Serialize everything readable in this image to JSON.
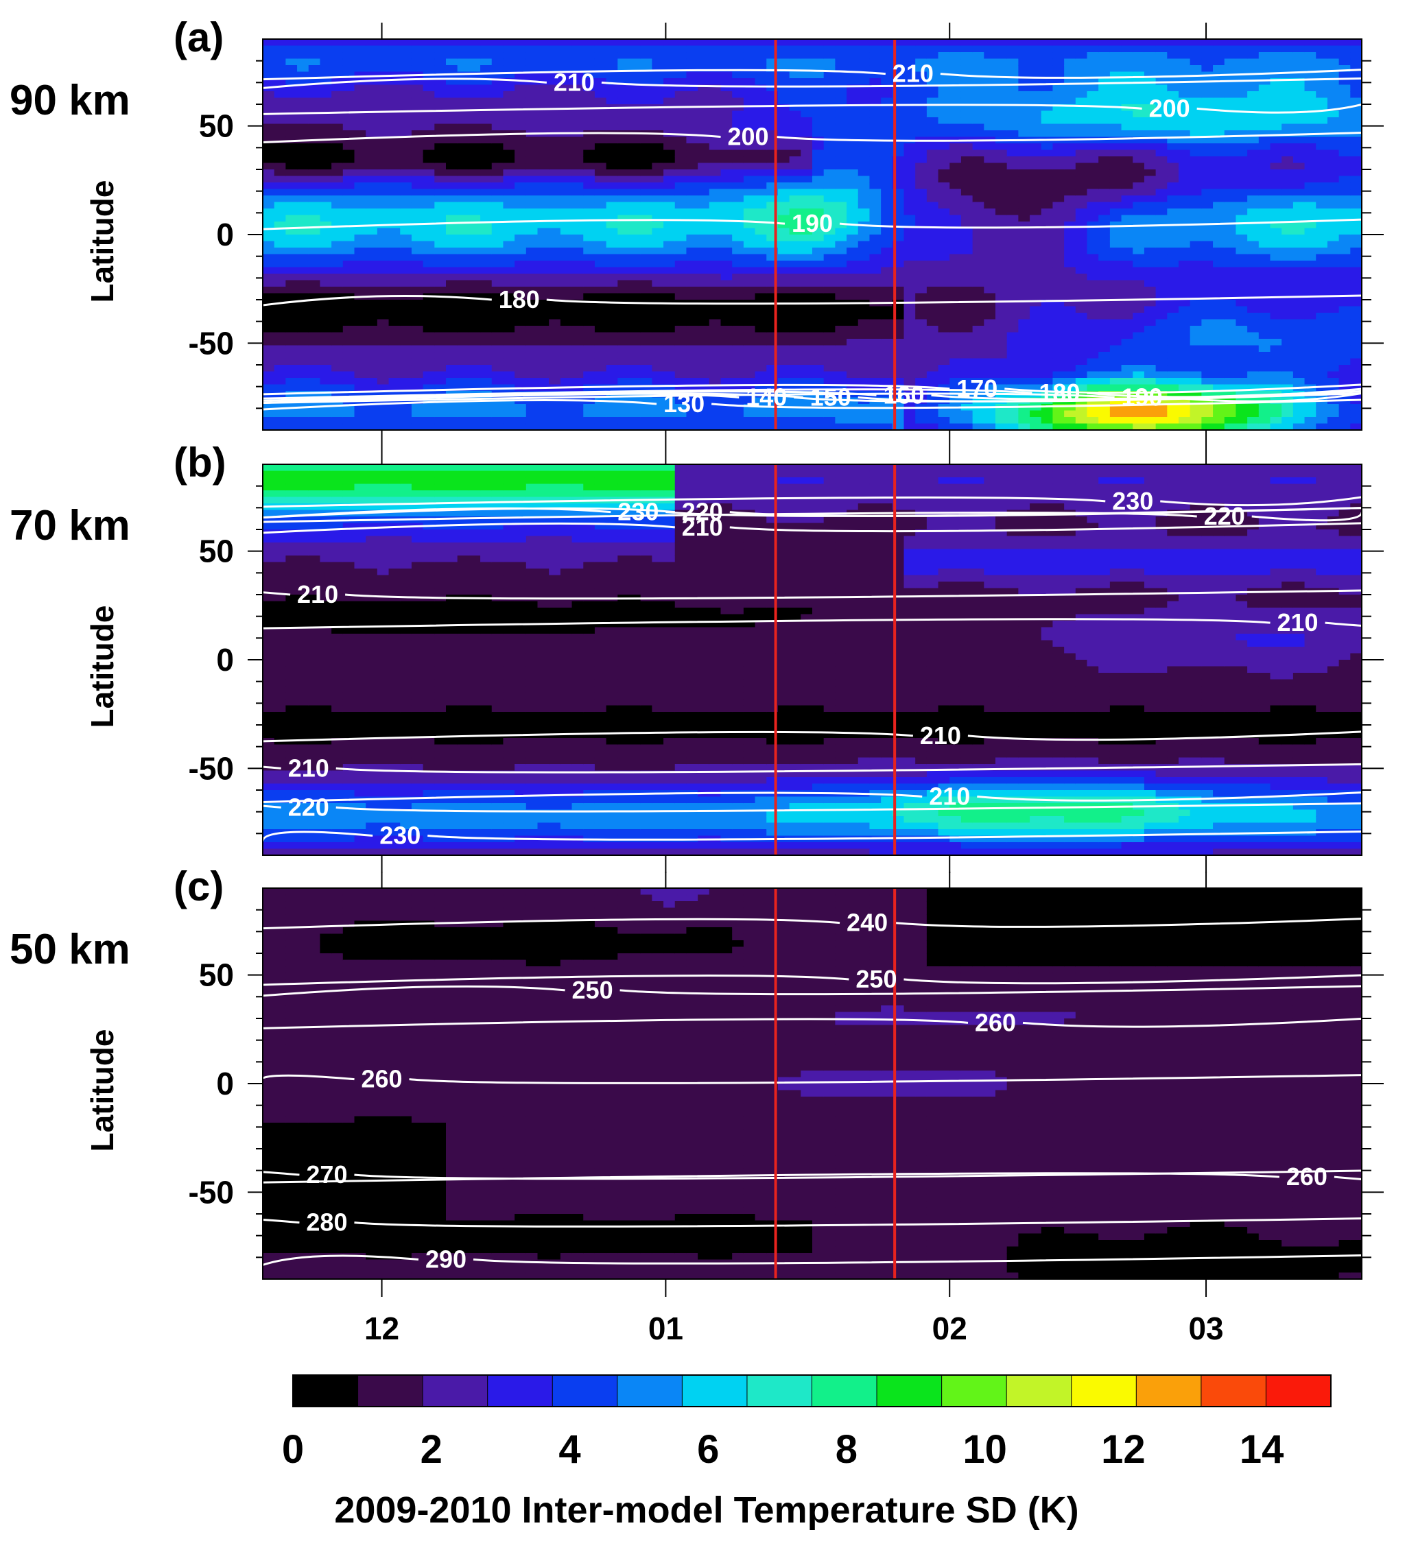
{
  "chart_data": {
    "type": "heatmap",
    "colorbar": {
      "label": "2009-2010 Inter-model Temperature SD (K)",
      "ticks": [
        "0",
        "2",
        "4",
        "6",
        "8",
        "10",
        "12",
        "14"
      ],
      "min": 0,
      "max": 15,
      "step": 1,
      "colors": [
        "#000000",
        "#3a0a4a",
        "#4a1aa8",
        "#2a1ae8",
        "#0a3ef0",
        "#0a86f6",
        "#00d2f2",
        "#1ee8c8",
        "#12f08a",
        "#0ae41c",
        "#62f418",
        "#c2f428",
        "#fafa00",
        "#faa00a",
        "#fa4a0a",
        "#fa1a0a"
      ]
    },
    "xaxis": {
      "tick_labels": [
        "12",
        "01",
        "02",
        "03"
      ],
      "tick_dates": [
        "2009-12-01",
        "2010-01-01",
        "2010-02-01",
        "2010-03-01"
      ],
      "range": [
        "2009-11-18",
        "2010-03-18"
      ]
    },
    "event_lines": {
      "color": "#e8231e",
      "dates": [
        "2010-01-13",
        "2010-01-26"
      ]
    },
    "panels": [
      {
        "tag": "(a)",
        "altitude": "90 km",
        "ylabel": "Latitude",
        "yticks": [
          "50",
          "0",
          "-50"
        ],
        "ylim": [
          -90,
          90
        ],
        "contour_labels": [
          {
            "text": "210",
            "date": "2009-12-22",
            "lat": 70
          },
          {
            "text": "210",
            "date": "2010-01-28",
            "lat": 74
          },
          {
            "text": "200",
            "date": "2010-01-10",
            "lat": 45
          },
          {
            "text": "200",
            "date": "2010-02-25",
            "lat": 58
          },
          {
            "text": "190",
            "date": "2010-01-17",
            "lat": 5
          },
          {
            "text": "180",
            "date": "2009-12-16",
            "lat": -30
          },
          {
            "text": "130",
            "date": "2010-01-03",
            "lat": -78
          },
          {
            "text": "140",
            "date": "2010-01-12",
            "lat": -75
          },
          {
            "text": "150",
            "date": "2010-01-19",
            "lat": -75
          },
          {
            "text": "160",
            "date": "2010-01-27",
            "lat": -74
          },
          {
            "text": "170",
            "date": "2010-02-04",
            "lat": -71
          },
          {
            "text": "180",
            "date": "2010-02-13",
            "lat": -73
          },
          {
            "text": "190",
            "date": "2010-02-22",
            "lat": -75
          }
        ]
      },
      {
        "tag": "(b)",
        "altitude": "70 km",
        "ylabel": "Latitude",
        "yticks": [
          "50",
          "0",
          "-50"
        ],
        "ylim": [
          -90,
          90
        ],
        "contour_labels": [
          {
            "text": "230",
            "date": "2009-12-29",
            "lat": 68
          },
          {
            "text": "220",
            "date": "2010-01-05",
            "lat": 68
          },
          {
            "text": "210",
            "date": "2010-01-05",
            "lat": 61
          },
          {
            "text": "230",
            "date": "2010-02-21",
            "lat": 73
          },
          {
            "text": "220",
            "date": "2010-03-03",
            "lat": 66
          },
          {
            "text": "210",
            "date": "2009-11-24",
            "lat": 30
          },
          {
            "text": "210",
            "date": "2010-03-11",
            "lat": 17
          },
          {
            "text": "210",
            "date": "2010-01-31",
            "lat": -35
          },
          {
            "text": "210",
            "date": "2009-11-23",
            "lat": -50
          },
          {
            "text": "220",
            "date": "2009-11-23",
            "lat": -68
          },
          {
            "text": "210",
            "date": "2010-02-01",
            "lat": -63
          },
          {
            "text": "230",
            "date": "2009-12-03",
            "lat": -81
          }
        ]
      },
      {
        "tag": "(c)",
        "altitude": "50 km",
        "ylabel": "Latitude",
        "yticks": [
          "50",
          "0",
          "-50"
        ],
        "ylim": [
          -90,
          90
        ],
        "contour_labels": [
          {
            "text": "240",
            "date": "2010-01-23",
            "lat": 74
          },
          {
            "text": "250",
            "date": "2009-12-24",
            "lat": 43
          },
          {
            "text": "250",
            "date": "2010-01-24",
            "lat": 48
          },
          {
            "text": "260",
            "date": "2010-02-06",
            "lat": 28
          },
          {
            "text": "260",
            "date": "2009-12-01",
            "lat": 2
          },
          {
            "text": "260",
            "date": "2010-03-12",
            "lat": -43
          },
          {
            "text": "270",
            "date": "2009-11-25",
            "lat": -42
          },
          {
            "text": "280",
            "date": "2009-11-25",
            "lat": -64
          },
          {
            "text": "290",
            "date": "2009-12-08",
            "lat": -81
          }
        ]
      }
    ]
  }
}
